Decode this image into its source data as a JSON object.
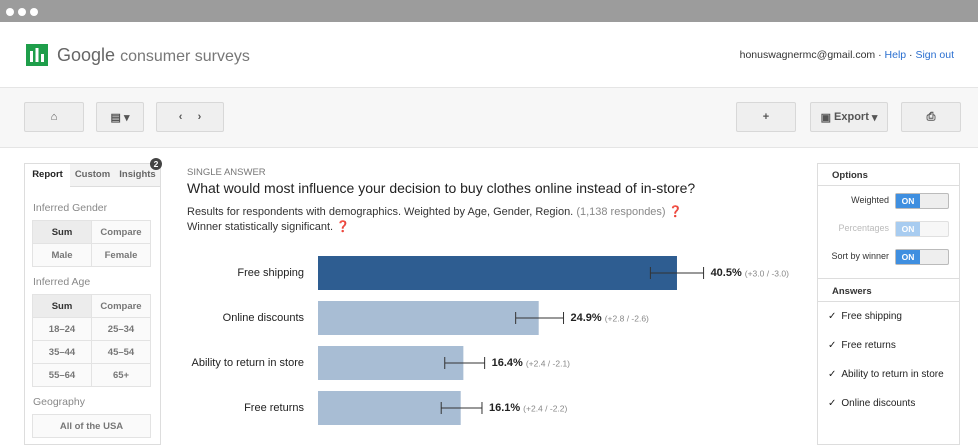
{
  "header": {
    "logo_google": "Google",
    "logo_product": "consumer surveys",
    "email": "honuswagnermc@gmail.com",
    "help": "Help",
    "sign_out": "Sign out"
  },
  "toolbar": {
    "export": "Export"
  },
  "left_panel": {
    "tabs": [
      "Report",
      "Custom",
      "Insights"
    ],
    "badge": 2,
    "sections": [
      {
        "title": "Inferred Gender",
        "buttons": [
          "Sum",
          "Compare",
          "Male",
          "Female"
        ]
      },
      {
        "title": "Inferred Age",
        "buttons": [
          "Sum",
          "Compare",
          "18–24",
          "25–34",
          "35–44",
          "45–54",
          "55–64",
          "65+"
        ]
      },
      {
        "title": "Geography",
        "buttons": [
          "All of the USA"
        ]
      }
    ]
  },
  "question": {
    "kind": "SINGLE ANSWER",
    "text": "What would most influence your decision to buy clothes online instead of in-store?",
    "subtitle": "Results for respondents with demographics. Weighted by Age, Gender, Region.",
    "responses": "(1,138 respondes)",
    "note": "Winner statistically significant."
  },
  "chart_data": {
    "type": "bar",
    "orientation": "horizontal",
    "categories": [
      "Free shipping",
      "Online discounts",
      "Ability to return in store",
      "Free returns"
    ],
    "values": [
      40.5,
      24.9,
      16.4,
      16.1
    ],
    "value_labels": [
      "40.5%",
      "24.9%",
      "16.4%",
      "16.1%"
    ],
    "error_plus": [
      3.0,
      2.8,
      2.4,
      2.4
    ],
    "error_minus": [
      3.0,
      2.6,
      2.1,
      2.2
    ],
    "error_labels": [
      "(+3.0 / -3.0)",
      "(+2.8 / -2.6)",
      "(+2.4 / -2.1)",
      "(+2.4 / -2.2)"
    ],
    "colors": [
      "#2e5d91",
      "#a8bdd4",
      "#a8bdd4",
      "#a8bdd4"
    ],
    "xlim": [
      0,
      44
    ]
  },
  "options": {
    "title": "Options",
    "items": [
      {
        "label": "Weighted",
        "state": "ON"
      },
      {
        "label": "Percentages",
        "state": "ON"
      },
      {
        "label": "Sort by winner",
        "state": "ON"
      }
    ]
  },
  "answers": {
    "title": "Answers",
    "items": [
      "Free shipping",
      "Free returns",
      "Ability to return in store",
      "Online discounts"
    ]
  }
}
